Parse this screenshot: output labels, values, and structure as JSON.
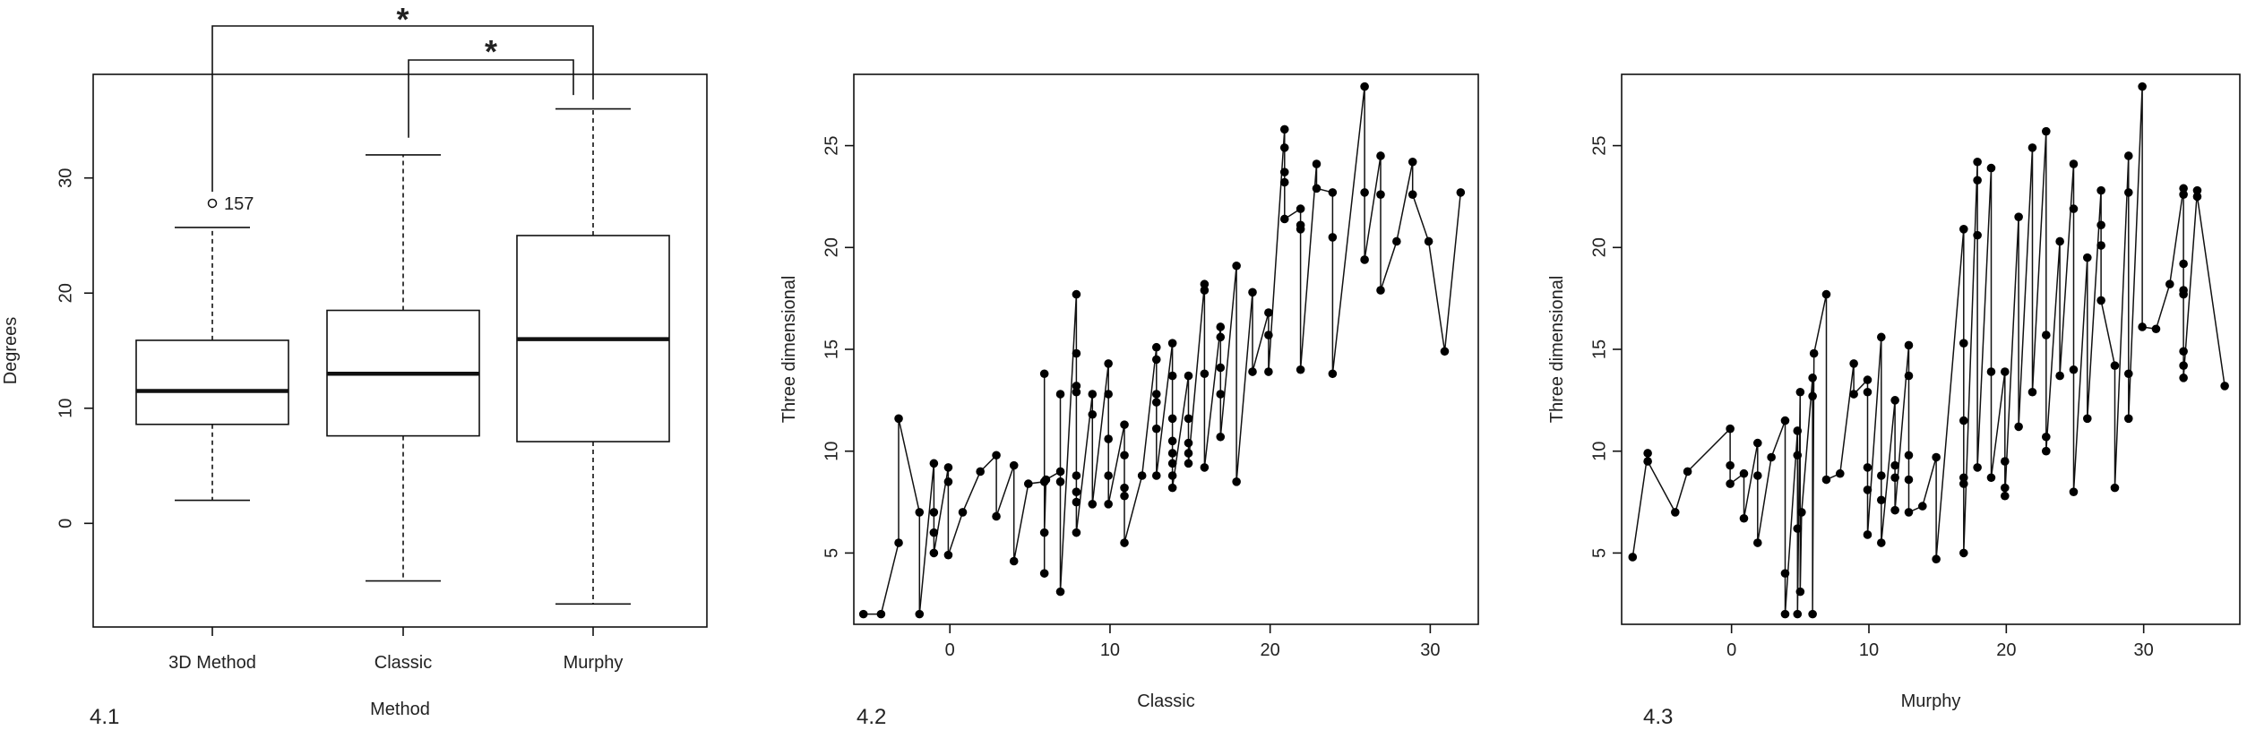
{
  "panels": [
    {
      "label": "4.1"
    },
    {
      "label": "4.2"
    },
    {
      "label": "4.3"
    }
  ],
  "chart_data": [
    {
      "type": "box",
      "xlabel": "Method",
      "ylabel": "Degrees",
      "categories": [
        "3D Method",
        "Classic",
        "Murphy"
      ],
      "ylim": [
        -9,
        39
      ],
      "yticks": [
        0,
        10,
        20,
        30
      ],
      "boxes": [
        {
          "name": "3D Method",
          "whisker_low": 2,
          "q1": 8.6,
          "median": 11.5,
          "q3": 15.9,
          "whisker_high": 25.7,
          "outliers": [
            {
              "value": 27.8,
              "label": "157"
            }
          ]
        },
        {
          "name": "Classic",
          "whisker_low": -5,
          "q1": 7.6,
          "median": 13.0,
          "q3": 18.5,
          "whisker_high": 32.0,
          "outliers": []
        },
        {
          "name": "Murphy",
          "whisker_low": -7,
          "q1": 7.1,
          "median": 16.0,
          "q3": 25.0,
          "whisker_high": 36.0,
          "outliers": []
        }
      ],
      "significance": [
        {
          "from": "3D Method",
          "to": "Murphy",
          "label": "*"
        },
        {
          "from": "Classic",
          "to": "Murphy",
          "label": "*"
        }
      ]
    },
    {
      "type": "line",
      "xlabel": "Classic",
      "ylabel": "Three dimensional",
      "xlim": [
        -6,
        33
      ],
      "ylim": [
        1.5,
        28.5
      ],
      "xticks": [
        0,
        10,
        20,
        30
      ],
      "yticks": [
        5,
        10,
        15,
        20,
        25
      ],
      "points": [
        [
          -5.4,
          2
        ],
        [
          -4.3,
          2
        ],
        [
          -3.2,
          5.5
        ],
        [
          -3.2,
          11.6
        ],
        [
          -1.9,
          7
        ],
        [
          -1.9,
          2
        ],
        [
          -1.0,
          9.4
        ],
        [
          -1.0,
          7
        ],
        [
          -1.0,
          6
        ],
        [
          -1.0,
          5
        ],
        [
          -0.1,
          9.2
        ],
        [
          -0.1,
          8.5
        ],
        [
          -0.1,
          4.9
        ],
        [
          0.8,
          7
        ],
        [
          1.9,
          9
        ],
        [
          2.9,
          9.8
        ],
        [
          2.9,
          6.8
        ],
        [
          4.0,
          9.3
        ],
        [
          4.0,
          4.6
        ],
        [
          4.9,
          8.4
        ],
        [
          5.9,
          8.5
        ],
        [
          5.9,
          13.8
        ],
        [
          5.9,
          4.0
        ],
        [
          5.9,
          6.0
        ],
        [
          6.0,
          8.6
        ],
        [
          6.9,
          9
        ],
        [
          6.9,
          12.8
        ],
        [
          6.9,
          8.5
        ],
        [
          6.9,
          3.1
        ],
        [
          7.9,
          17.7
        ],
        [
          7.9,
          14.8
        ],
        [
          7.9,
          13.2
        ],
        [
          7.9,
          12.9
        ],
        [
          7.9,
          8.8
        ],
        [
          7.9,
          8
        ],
        [
          7.9,
          7.5
        ],
        [
          7.9,
          6.0
        ],
        [
          8.9,
          12.8
        ],
        [
          8.9,
          11.8
        ],
        [
          8.9,
          7.4
        ],
        [
          9.9,
          14.3
        ],
        [
          9.9,
          12.8
        ],
        [
          9.9,
          10.6
        ],
        [
          9.9,
          8.8
        ],
        [
          9.9,
          7.4
        ],
        [
          10.9,
          11.3
        ],
        [
          10.9,
          9.8
        ],
        [
          10.9,
          8.2
        ],
        [
          10.9,
          7.8
        ],
        [
          10.9,
          5.5
        ],
        [
          12,
          8.8
        ],
        [
          12.9,
          15.1
        ],
        [
          12.9,
          14.5
        ],
        [
          12.9,
          12.8
        ],
        [
          12.9,
          12.4
        ],
        [
          12.9,
          11.1
        ],
        [
          12.9,
          8.8
        ],
        [
          13.9,
          15.3
        ],
        [
          13.9,
          13.7
        ],
        [
          13.9,
          11.6
        ],
        [
          13.9,
          10.5
        ],
        [
          13.9,
          9.9
        ],
        [
          13.9,
          9.4
        ],
        [
          13.9,
          8.8
        ],
        [
          13.9,
          8.2
        ],
        [
          14.9,
          13.7
        ],
        [
          14.9,
          11.6
        ],
        [
          14.9,
          10.4
        ],
        [
          14.9,
          9.9
        ],
        [
          14.9,
          9.4
        ],
        [
          15.9,
          18.2
        ],
        [
          15.9,
          17.9
        ],
        [
          15.9,
          13.8
        ],
        [
          15.9,
          9.2
        ],
        [
          16.9,
          16.1
        ],
        [
          16.9,
          15.6
        ],
        [
          16.9,
          14.1
        ],
        [
          16.9,
          12.8
        ],
        [
          16.9,
          10.7
        ],
        [
          17.9,
          19.1
        ],
        [
          17.9,
          8.5
        ],
        [
          18.9,
          17.8
        ],
        [
          18.9,
          13.9
        ],
        [
          19.9,
          16.8
        ],
        [
          19.9,
          15.7
        ],
        [
          19.9,
          13.9
        ],
        [
          20.9,
          25.8
        ],
        [
          20.9,
          24.9
        ],
        [
          20.9,
          23.7
        ],
        [
          20.9,
          23.2
        ],
        [
          20.9,
          21.4
        ],
        [
          21.9,
          21.9
        ],
        [
          21.9,
          21.1
        ],
        [
          21.9,
          20.9
        ],
        [
          21.9,
          14
        ],
        [
          22.9,
          24.1
        ],
        [
          22.9,
          22.9
        ],
        [
          23.9,
          22.7
        ],
        [
          23.9,
          20.5
        ],
        [
          23.9,
          13.8
        ],
        [
          25.9,
          27.9
        ],
        [
          25.9,
          22.7
        ],
        [
          25.9,
          19.4
        ],
        [
          26.9,
          24.5
        ],
        [
          26.9,
          22.6
        ],
        [
          26.9,
          17.9
        ],
        [
          27.9,
          20.3
        ],
        [
          28.9,
          24.2
        ],
        [
          28.9,
          22.6
        ],
        [
          29.9,
          20.3
        ],
        [
          30.9,
          14.9
        ],
        [
          31.9,
          22.7
        ]
      ]
    },
    {
      "type": "line",
      "xlabel": "Murphy",
      "ylabel": "Three dimensional",
      "xlim": [
        -8,
        37
      ],
      "ylim": [
        1.5,
        28.5
      ],
      "xticks": [
        0,
        10,
        20,
        30
      ],
      "yticks": [
        5,
        10,
        15,
        20,
        25
      ],
      "points": [
        [
          -7.2,
          4.8
        ],
        [
          -6.1,
          9.9
        ],
        [
          -6.1,
          9.5
        ],
        [
          -4.1,
          7
        ],
        [
          -3.2,
          9
        ],
        [
          -0.1,
          11.1
        ],
        [
          -0.1,
          9.3
        ],
        [
          -0.1,
          8.4
        ],
        [
          0.9,
          8.9
        ],
        [
          0.9,
          6.7
        ],
        [
          1.9,
          10.4
        ],
        [
          1.9,
          8.8
        ],
        [
          1.9,
          5.5
        ],
        [
          2.9,
          9.7
        ],
        [
          3.9,
          11.5
        ],
        [
          3.9,
          4
        ],
        [
          3.9,
          2
        ],
        [
          4.8,
          11
        ],
        [
          4.8,
          9.8
        ],
        [
          4.8,
          6.2
        ],
        [
          4.8,
          2
        ],
        [
          5.0,
          12.9
        ],
        [
          5.0,
          3.1
        ],
        [
          5.1,
          7
        ],
        [
          5.9,
          13.6
        ],
        [
          5.9,
          12.7
        ],
        [
          5.9,
          2
        ],
        [
          6.0,
          14.8
        ],
        [
          6.9,
          17.7
        ],
        [
          6.9,
          8.6
        ],
        [
          7.9,
          8.9
        ],
        [
          8.9,
          14.3
        ],
        [
          8.9,
          12.8
        ],
        [
          9.9,
          13.5
        ],
        [
          9.9,
          12.9
        ],
        [
          9.9,
          9.2
        ],
        [
          9.9,
          8.1
        ],
        [
          9.9,
          5.9
        ],
        [
          10.9,
          15.6
        ],
        [
          10.9,
          8.8
        ],
        [
          10.9,
          7.6
        ],
        [
          10.9,
          5.5
        ],
        [
          11.9,
          12.5
        ],
        [
          11.9,
          9.3
        ],
        [
          11.9,
          8.7
        ],
        [
          11.9,
          7.1
        ],
        [
          12.9,
          15.2
        ],
        [
          12.9,
          13.7
        ],
        [
          12.9,
          9.8
        ],
        [
          12.9,
          8.6
        ],
        [
          12.9,
          7
        ],
        [
          13.9,
          7.3
        ],
        [
          14.9,
          9.7
        ],
        [
          14.9,
          4.7
        ],
        [
          16.9,
          20.9
        ],
        [
          16.9,
          15.3
        ],
        [
          16.9,
          11.5
        ],
        [
          16.9,
          8.7
        ],
        [
          16.9,
          8.4
        ],
        [
          16.9,
          5
        ],
        [
          17.9,
          24.2
        ],
        [
          17.9,
          23.3
        ],
        [
          17.9,
          20.6
        ],
        [
          17.9,
          9.2
        ],
        [
          18.9,
          23.9
        ],
        [
          18.9,
          13.9
        ],
        [
          18.9,
          8.7
        ],
        [
          19.9,
          13.9
        ],
        [
          19.9,
          9.5
        ],
        [
          19.9,
          8.2
        ],
        [
          19.9,
          7.8
        ],
        [
          20.9,
          21.5
        ],
        [
          20.9,
          11.2
        ],
        [
          21.9,
          24.9
        ],
        [
          21.9,
          12.9
        ],
        [
          22.9,
          25.7
        ],
        [
          22.9,
          15.7
        ],
        [
          22.9,
          10.7
        ],
        [
          22.9,
          10
        ],
        [
          23.9,
          20.3
        ],
        [
          23.9,
          13.7
        ],
        [
          24.9,
          24.1
        ],
        [
          24.9,
          21.9
        ],
        [
          24.9,
          14
        ],
        [
          24.9,
          8
        ],
        [
          25.9,
          19.5
        ],
        [
          25.9,
          11.6
        ],
        [
          26.9,
          22.8
        ],
        [
          26.9,
          21.1
        ],
        [
          26.9,
          20.1
        ],
        [
          26.9,
          17.4
        ],
        [
          27.9,
          14.2
        ],
        [
          27.9,
          8.2
        ],
        [
          28.9,
          24.5
        ],
        [
          28.9,
          22.7
        ],
        [
          28.9,
          13.8
        ],
        [
          28.9,
          11.6
        ],
        [
          29.9,
          27.9
        ],
        [
          29.9,
          16.1
        ],
        [
          30.9,
          16
        ],
        [
          31.9,
          18.2
        ],
        [
          32.9,
          22.9
        ],
        [
          32.9,
          22.6
        ],
        [
          32.9,
          19.2
        ],
        [
          32.9,
          17.9
        ],
        [
          32.9,
          17.7
        ],
        [
          32.9,
          14.9
        ],
        [
          32.9,
          14.2
        ],
        [
          32.9,
          13.6
        ],
        [
          33.9,
          22.8
        ],
        [
          33.9,
          22.5
        ],
        [
          35.9,
          13.2
        ]
      ]
    }
  ]
}
